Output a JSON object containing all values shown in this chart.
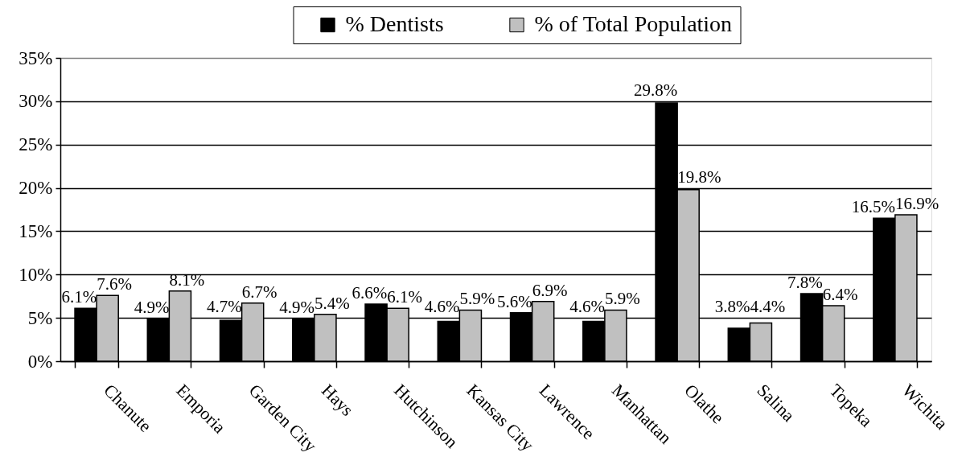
{
  "chart_data": {
    "type": "bar",
    "categories": [
      "Chanute",
      "Emporia",
      "Garden City",
      "Hays",
      "Hutchinson",
      "Kansas City",
      "Lawrence",
      "Manhattan",
      "Olathe",
      "Salina",
      "Topeka",
      "Wichita"
    ],
    "series": [
      {
        "name": "% Dentists",
        "color": "#000000",
        "values": [
          6.1,
          4.9,
          4.7,
          4.9,
          6.6,
          4.6,
          5.6,
          4.6,
          29.8,
          3.8,
          7.8,
          16.5
        ],
        "value_labels": [
          "6.1%",
          "4.9%",
          "4.7%",
          "4.9%",
          "6.6%",
          "4.6%",
          "5.6%",
          "4.6%",
          "29.8%",
          "3.8%",
          "7.8%",
          "16.5%"
        ]
      },
      {
        "name": "% of Total Population",
        "color": "#c0c0c0",
        "values": [
          7.6,
          8.1,
          6.7,
          5.4,
          6.1,
          5.9,
          6.9,
          5.9,
          19.8,
          4.4,
          6.4,
          16.9
        ],
        "value_labels": [
          "7.6%",
          "8.1%",
          "6.7%",
          "5.4%",
          "6.1%",
          "5.9%",
          "6.9%",
          "5.9%",
          "19.8%",
          "4.4%",
          "6.4%",
          "16.9%"
        ]
      }
    ],
    "ylim": [
      0,
      35
    ],
    "yticks": [
      {
        "value": 0,
        "label": "0%"
      },
      {
        "value": 5,
        "label": "5%"
      },
      {
        "value": 10,
        "label": "10%"
      },
      {
        "value": 15,
        "label": "15%"
      },
      {
        "value": 20,
        "label": "20%"
      },
      {
        "value": 25,
        "label": "25%"
      },
      {
        "value": 30,
        "label": "30%"
      },
      {
        "value": 35,
        "label": "35%"
      }
    ],
    "grid": "y",
    "legend": "top"
  }
}
